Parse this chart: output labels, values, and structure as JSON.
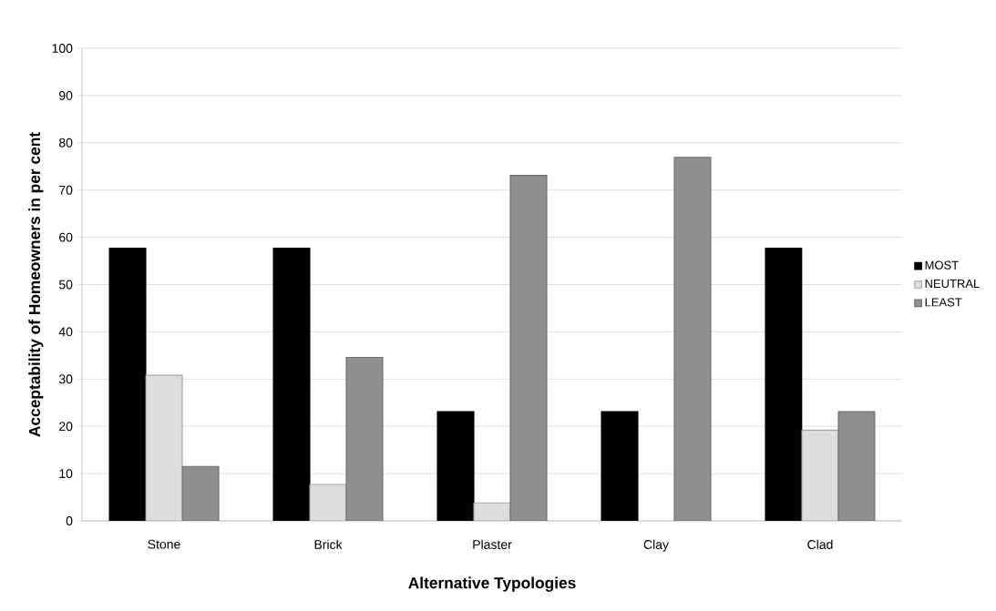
{
  "chart_data": {
    "type": "bar",
    "xlabel": "Alternative Typologies",
    "ylabel": "Acceptability of Homeowners in per cent",
    "categories": [
      "Stone",
      "Brick",
      "Plaster",
      "Clay",
      "Clad"
    ],
    "series": [
      {
        "name": "MOST",
        "color": "#000000",
        "values": [
          57.7,
          57.7,
          23.1,
          23.1,
          57.7
        ]
      },
      {
        "name": "NEUTRAL",
        "color": "#dddddd",
        "values": [
          30.8,
          7.7,
          3.8,
          null,
          19.2
        ]
      },
      {
        "name": "LEAST",
        "color": "#909090",
        "values": [
          11.5,
          34.6,
          73.1,
          76.9,
          23.1
        ]
      }
    ],
    "ylim": [
      0,
      100
    ],
    "yticks": [
      0,
      10,
      20,
      30,
      40,
      50,
      60,
      70,
      80,
      90,
      100
    ],
    "grid": "y",
    "legend": "right"
  }
}
